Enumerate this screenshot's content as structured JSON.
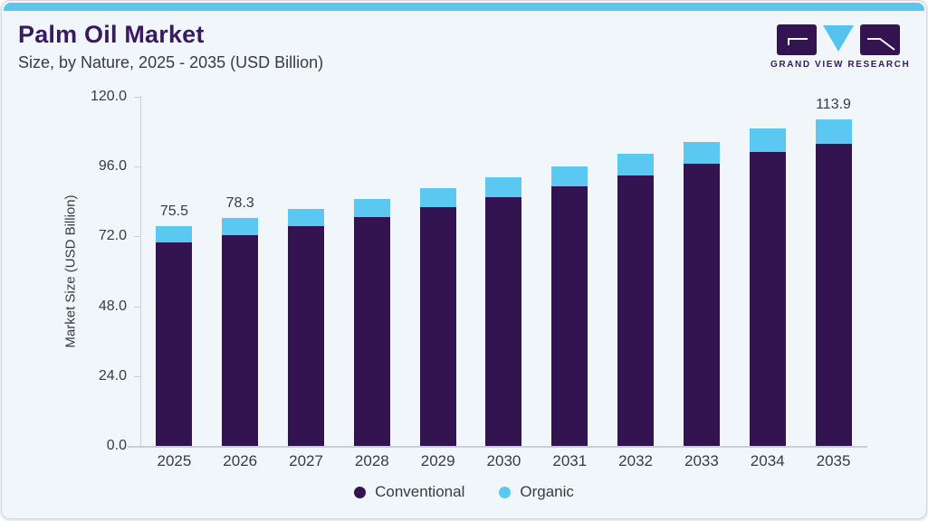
{
  "page": {
    "title": "Palm Oil Market",
    "subtitle": "Size, by Nature, 2025 - 2035 (USD Billion)"
  },
  "logo": {
    "name": "Grand View Research logo",
    "text": "GRAND VIEW RESEARCH"
  },
  "colors": {
    "top_strip": "#5cc6ef",
    "background": "#f0f6fa",
    "title_purple": "#3a1a5e",
    "conventional_purple": "#331450",
    "organic_blue": "#5bc8f2",
    "axis_gray": "#c9cfd6",
    "text_gray": "#3a3a42"
  },
  "chart_data": {
    "type": "bar",
    "stacked": true,
    "title": "Palm Oil Market Size, by Nature, 2025 - 2035 (USD Billion)",
    "categories": [
      "2025",
      "2026",
      "2027",
      "2028",
      "2029",
      "2030",
      "2031",
      "2032",
      "2033",
      "2034",
      "2035"
    ],
    "series": [
      {
        "name": "Conventional",
        "color": "#331450",
        "values": [
          69.9,
          72.6,
          75.6,
          78.8,
          82.1,
          85.5,
          89.1,
          92.9,
          96.9,
          101.0,
          105.5
        ]
      },
      {
        "name": "Organic",
        "color": "#5bc8f2",
        "values": [
          5.6,
          5.7,
          6.0,
          6.2,
          6.5,
          6.8,
          7.1,
          7.4,
          7.7,
          8.1,
          8.4
        ]
      }
    ],
    "totals": [
      75.5,
      78.3,
      81.6,
      85.0,
      88.6,
      92.3,
      96.2,
      100.3,
      104.6,
      109.1,
      113.9
    ],
    "bar_labels": {
      "2025": "75.5",
      "2026": "78.3",
      "2035": "113.9"
    },
    "ylabel": "Market Size (USD Billion)",
    "ylim": [
      0,
      120
    ],
    "ytick_values": [
      0,
      24,
      48,
      72,
      96,
      120
    ],
    "ytick_format": "one_decimal",
    "grid": false,
    "legend_position": "bottom"
  }
}
